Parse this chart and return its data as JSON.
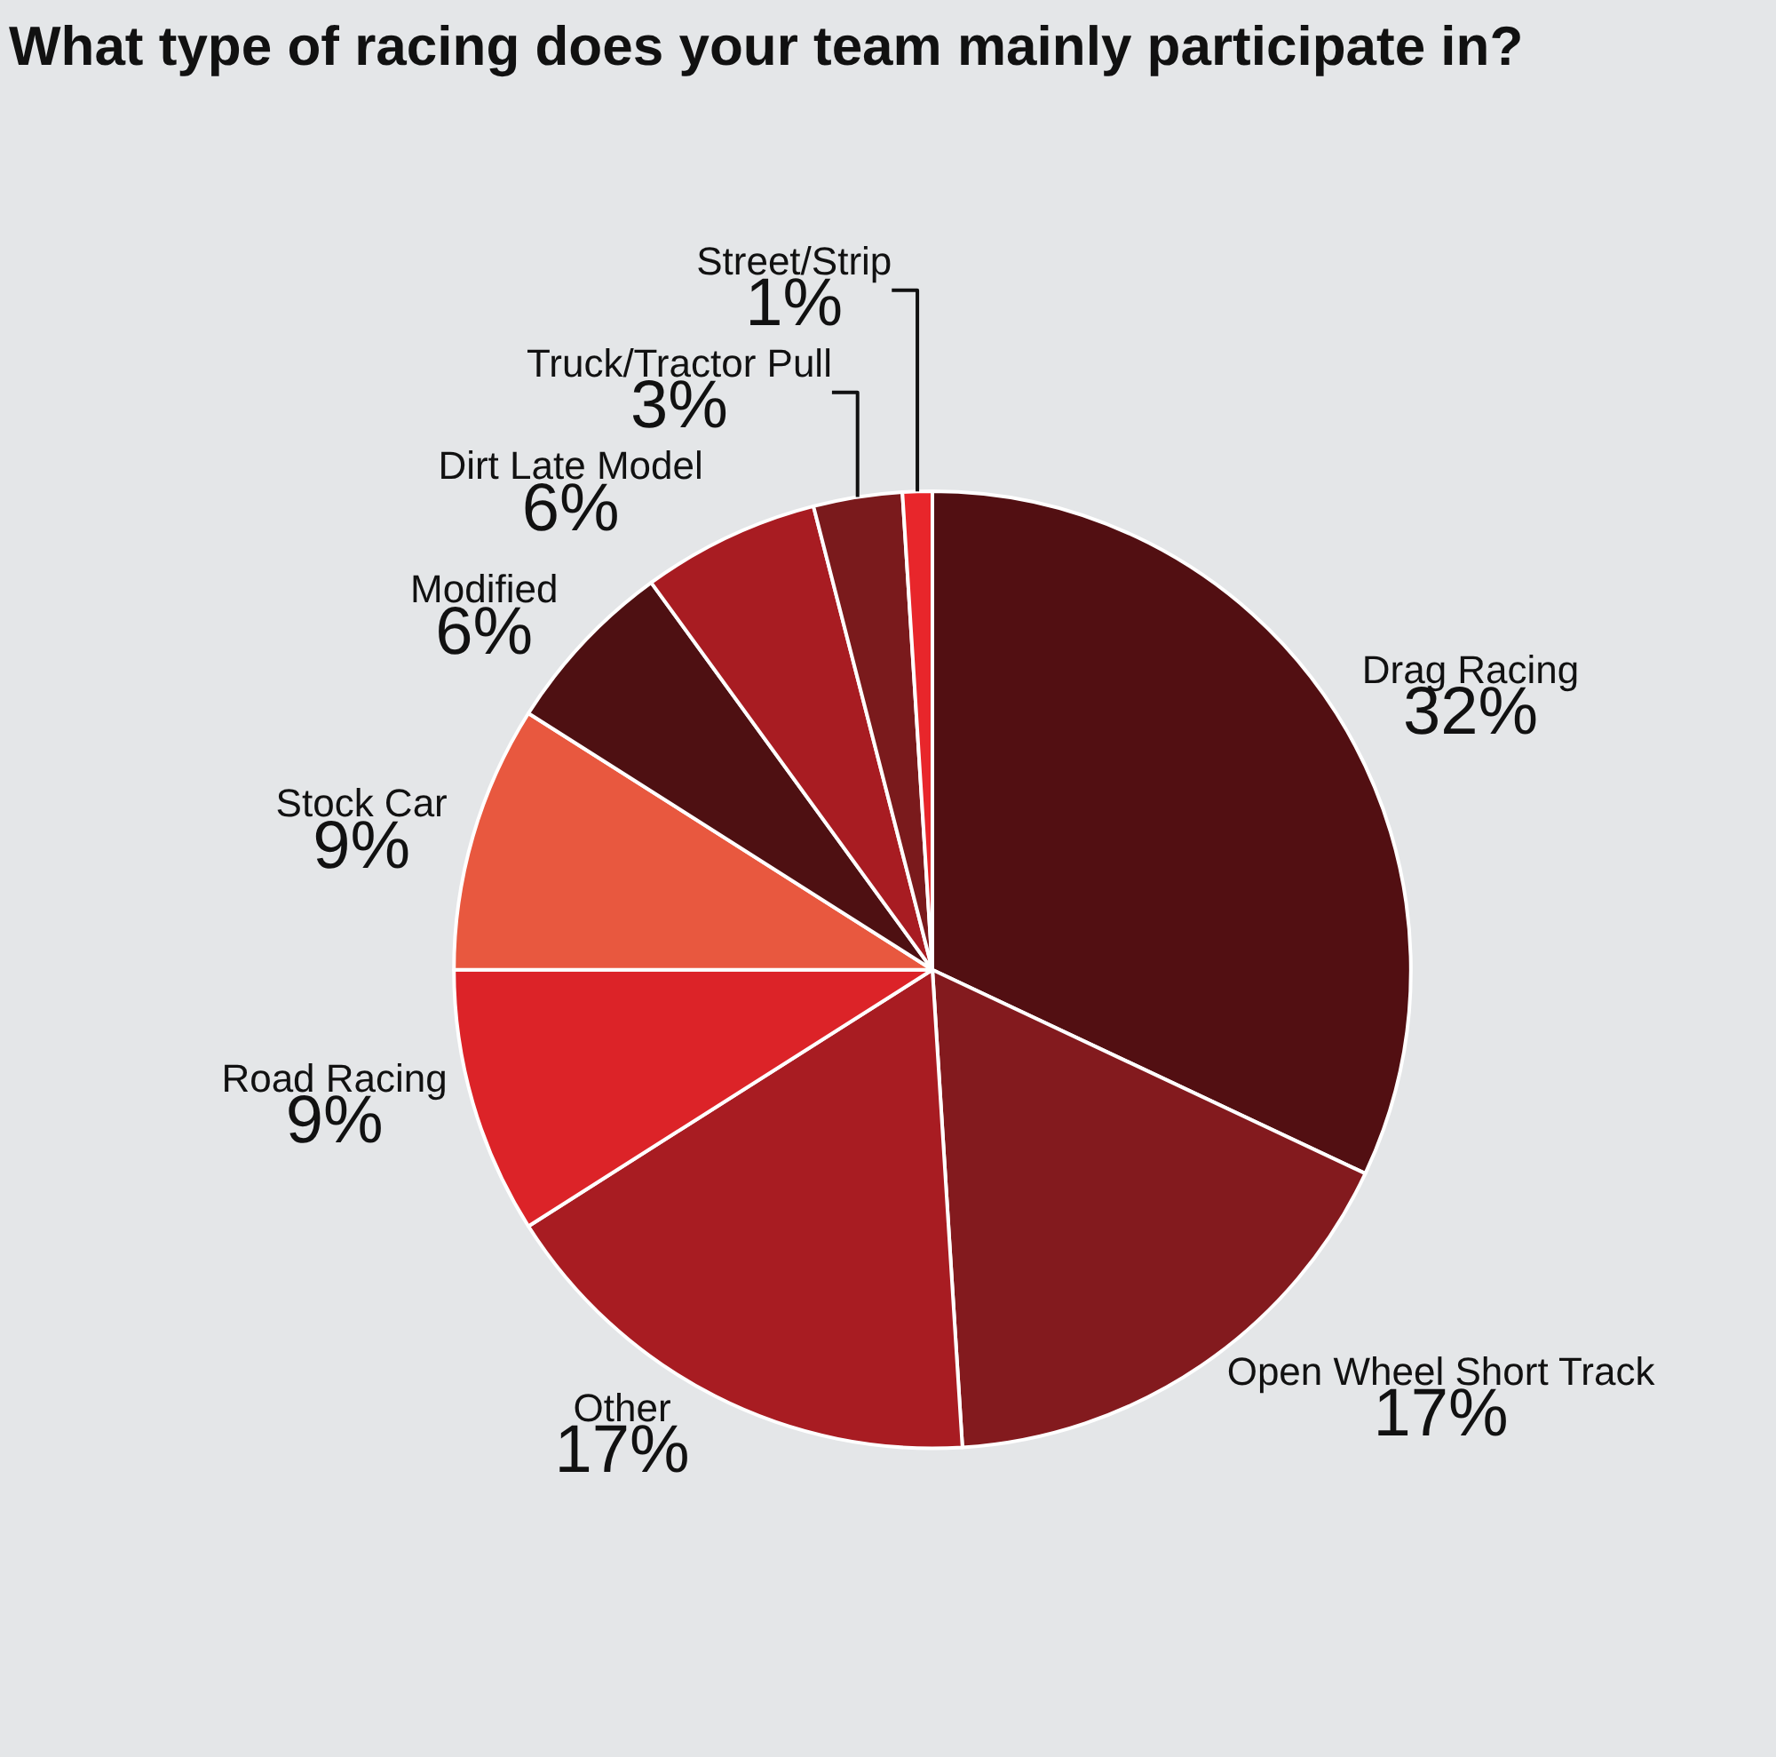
{
  "chart_data": {
    "type": "pie",
    "title": "What type of racing does your team mainly participate in?",
    "categories": [
      "Drag Racing",
      "Open Wheel Short Track",
      "Other",
      "Road Racing",
      "Stock Car",
      "Modified",
      "Dirt Late Model",
      "Truck/Tractor Pull",
      "Street/Strip"
    ],
    "values": [
      32,
      17,
      17,
      9,
      9,
      6,
      6,
      3,
      1
    ],
    "value_labels": [
      "32%",
      "17%",
      "17%",
      "9%",
      "9%",
      "6%",
      "6%",
      "3%",
      "1%"
    ],
    "colors": [
      "#520f12",
      "#831a1e",
      "#a81c22",
      "#dc2328",
      "#e8583f",
      "#4e1012",
      "#a81c22",
      "#7a1a1c",
      "#e8262b"
    ],
    "legend": false
  }
}
